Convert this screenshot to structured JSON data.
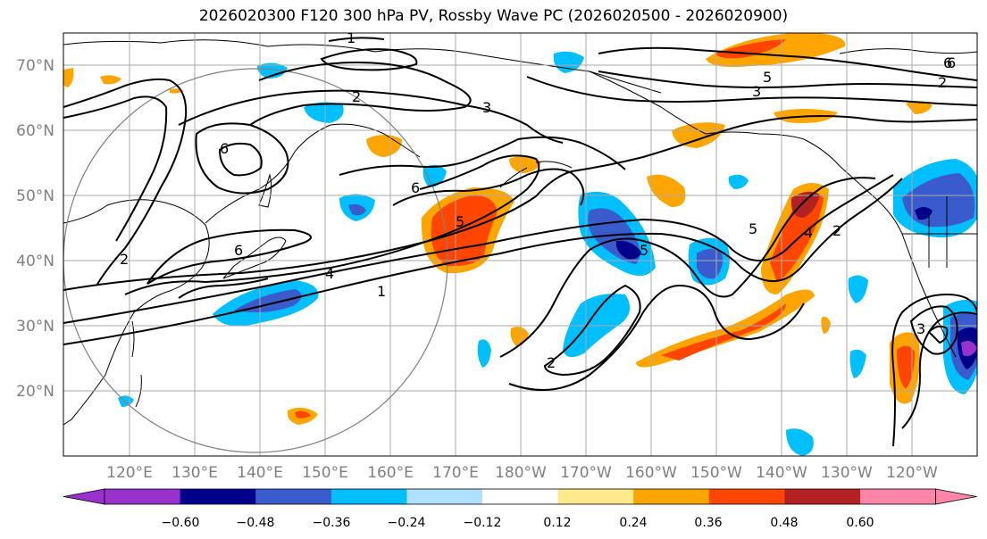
{
  "title": "2026020300 F120 300 hPa PV, Rossby Wave PC (2026020500 - 2026020900)",
  "lat_labels": [
    "70°N",
    "60°N",
    "50°N",
    "40°N",
    "30°N",
    "20°N"
  ],
  "lon_labels": [
    "120°E",
    "130°E",
    "140°E",
    "150°E",
    "160°E",
    "170°E",
    "180°W",
    "170°W",
    "160°W",
    "150°W",
    "140°W",
    "130°W",
    "120°W"
  ],
  "colorbar": {
    "ticks": [
      "−0.60",
      "−0.48",
      "−0.36",
      "−0.24",
      "−0.12",
      "0.12",
      "0.24",
      "0.36",
      "0.48",
      "0.60"
    ],
    "colors": [
      "#9932CC",
      "#00008B",
      "#3A5BCC",
      "#00BFFF",
      "#B0E0FF",
      "#FFFFFF",
      "#FFE98A",
      "#FFA500",
      "#FF4500",
      "#B22222",
      "#FF85A8"
    ]
  },
  "contour_labels": [
    "1",
    "2",
    "3",
    "5",
    "6",
    "6",
    "6",
    "4",
    "1",
    "5",
    "6",
    "2",
    "2",
    "5",
    "5",
    "4",
    "2",
    "3",
    "3",
    "6",
    "2"
  ]
}
